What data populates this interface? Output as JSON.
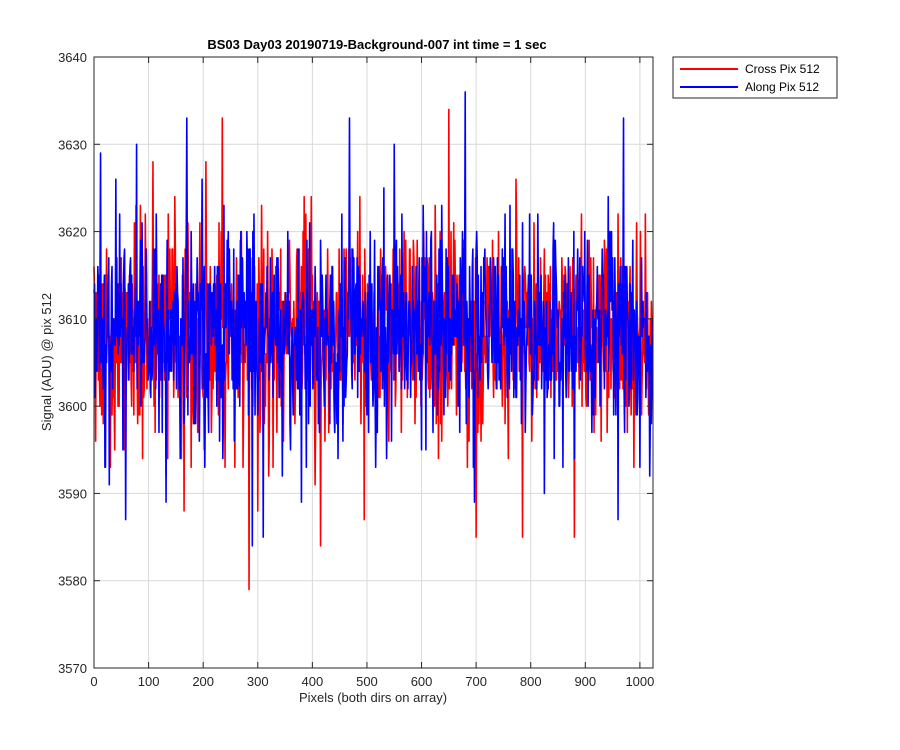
{
  "chart_data": {
    "type": "line",
    "title": "BS03 Day03 20190719-Background-007 int time = 1 sec",
    "xlabel": "Pixels (both dirs on array)",
    "ylabel": "Signal (ADU) @ pix 512",
    "xlim": [
      0,
      1024
    ],
    "ylim": [
      3570,
      3640
    ],
    "xticks": [
      0,
      100,
      200,
      300,
      400,
      500,
      600,
      700,
      800,
      900,
      1000
    ],
    "yticks": [
      3570,
      3580,
      3590,
      3600,
      3610,
      3620,
      3630,
      3640
    ],
    "grid": true,
    "legend_position": "outside-top-right",
    "series": [
      {
        "name": "Cross Pix 512",
        "color": "#ff0000",
        "mean": 3609,
        "spread": 6,
        "n_points": 1024,
        "notable_points": [
          {
            "x": 3,
            "y": 3596
          },
          {
            "x": 30,
            "y": 3593
          },
          {
            "x": 80,
            "y": 3598
          },
          {
            "x": 108,
            "y": 3628
          },
          {
            "x": 132,
            "y": 3592
          },
          {
            "x": 160,
            "y": 3594
          },
          {
            "x": 165,
            "y": 3588
          },
          {
            "x": 205,
            "y": 3628
          },
          {
            "x": 235,
            "y": 3633
          },
          {
            "x": 258,
            "y": 3593
          },
          {
            "x": 284,
            "y": 3579
          },
          {
            "x": 300,
            "y": 3588
          },
          {
            "x": 320,
            "y": 3592
          },
          {
            "x": 405,
            "y": 3591
          },
          {
            "x": 415,
            "y": 3584
          },
          {
            "x": 430,
            "y": 3597
          },
          {
            "x": 495,
            "y": 3587
          },
          {
            "x": 540,
            "y": 3596
          },
          {
            "x": 635,
            "y": 3598
          },
          {
            "x": 640,
            "y": 3607
          },
          {
            "x": 650,
            "y": 3634
          },
          {
            "x": 700,
            "y": 3585
          },
          {
            "x": 785,
            "y": 3585
          },
          {
            "x": 880,
            "y": 3585
          },
          {
            "x": 940,
            "y": 3597
          },
          {
            "x": 1010,
            "y": 3622
          },
          {
            "x": 1020,
            "y": 3604
          }
        ]
      },
      {
        "name": "Along Pix 512",
        "color": "#0000ff",
        "mean": 3609,
        "spread": 6,
        "n_points": 1024,
        "notable_points": [
          {
            "x": 12,
            "y": 3629
          },
          {
            "x": 28,
            "y": 3591
          },
          {
            "x": 58,
            "y": 3587
          },
          {
            "x": 78,
            "y": 3630
          },
          {
            "x": 132,
            "y": 3589
          },
          {
            "x": 170,
            "y": 3633
          },
          {
            "x": 210,
            "y": 3597
          },
          {
            "x": 290,
            "y": 3584
          },
          {
            "x": 310,
            "y": 3585
          },
          {
            "x": 345,
            "y": 3592
          },
          {
            "x": 380,
            "y": 3589
          },
          {
            "x": 468,
            "y": 3633
          },
          {
            "x": 550,
            "y": 3630
          },
          {
            "x": 600,
            "y": 3595
          },
          {
            "x": 680,
            "y": 3636
          },
          {
            "x": 697,
            "y": 3589
          },
          {
            "x": 825,
            "y": 3590
          },
          {
            "x": 880,
            "y": 3594
          },
          {
            "x": 945,
            "y": 3620
          },
          {
            "x": 960,
            "y": 3587
          },
          {
            "x": 970,
            "y": 3633
          },
          {
            "x": 1000,
            "y": 3593
          },
          {
            "x": 1018,
            "y": 3592
          }
        ]
      }
    ]
  }
}
